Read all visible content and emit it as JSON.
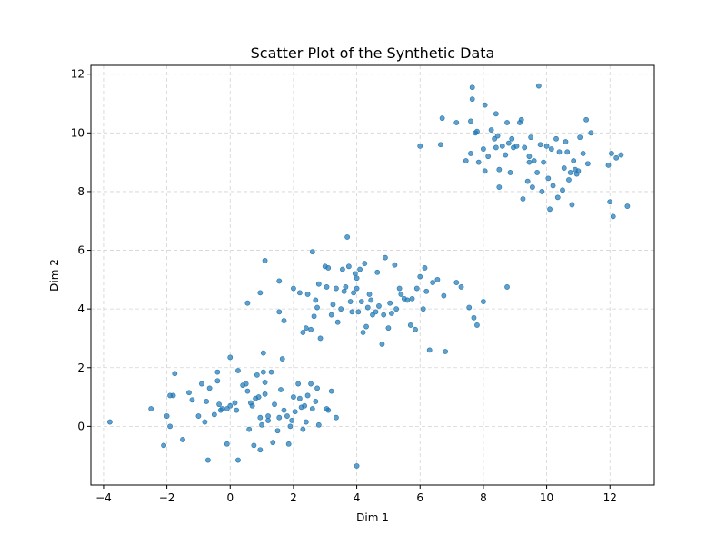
{
  "chart_data": {
    "type": "scatter",
    "title": "Scatter Plot of the Synthetic Data",
    "xlabel": "Dim 1",
    "ylabel": "Dim 2",
    "xlim": [
      -4.4,
      13.4
    ],
    "ylim": [
      -2.0,
      12.3
    ],
    "xticks": [
      -4,
      -2,
      0,
      2,
      4,
      6,
      8,
      10,
      12
    ],
    "yticks": [
      0,
      2,
      4,
      6,
      8,
      10,
      12
    ],
    "grid": true,
    "marker_color": "#1f77b4",
    "marker_alpha": 0.7,
    "series": [
      {
        "points": [
          [
            -3.8,
            0.15
          ],
          [
            -2.5,
            0.6
          ],
          [
            -2.1,
            -0.65
          ],
          [
            -2.0,
            0.35
          ],
          [
            -1.9,
            0.0
          ],
          [
            -1.9,
            1.05
          ],
          [
            -1.8,
            1.05
          ],
          [
            -1.75,
            1.8
          ],
          [
            -1.5,
            -0.45
          ],
          [
            -1.3,
            1.15
          ],
          [
            -1.2,
            0.9
          ],
          [
            -1.0,
            0.35
          ],
          [
            -0.9,
            1.45
          ],
          [
            -0.8,
            0.15
          ],
          [
            -0.75,
            0.85
          ],
          [
            -0.7,
            -1.15
          ],
          [
            -0.65,
            1.3
          ],
          [
            -0.5,
            0.4
          ],
          [
            -0.4,
            1.85
          ],
          [
            -0.4,
            1.55
          ],
          [
            -0.35,
            0.75
          ],
          [
            -0.3,
            0.55
          ],
          [
            -0.25,
            0.6
          ],
          [
            -0.1,
            0.6
          ],
          [
            -0.1,
            -0.6
          ],
          [
            0.0,
            0.7
          ],
          [
            0.0,
            2.35
          ],
          [
            0.15,
            0.8
          ],
          [
            0.2,
            0.55
          ],
          [
            0.25,
            1.9
          ],
          [
            0.25,
            -1.15
          ],
          [
            0.4,
            1.4
          ],
          [
            0.5,
            1.45
          ],
          [
            0.55,
            1.2
          ],
          [
            0.6,
            -0.1
          ],
          [
            0.65,
            0.8
          ],
          [
            0.7,
            0.7
          ],
          [
            0.75,
            -0.65
          ],
          [
            0.8,
            0.95
          ],
          [
            0.85,
            1.75
          ],
          [
            0.9,
            1.0
          ],
          [
            0.95,
            0.3
          ],
          [
            0.95,
            -0.8
          ],
          [
            1.0,
            0.05
          ],
          [
            1.05,
            2.5
          ],
          [
            1.05,
            1.85
          ],
          [
            1.1,
            1.1
          ],
          [
            1.1,
            1.5
          ],
          [
            1.2,
            0.35
          ],
          [
            1.2,
            0.2
          ],
          [
            1.3,
            1.85
          ],
          [
            1.35,
            -0.55
          ],
          [
            1.4,
            0.75
          ],
          [
            1.5,
            -0.15
          ],
          [
            1.55,
            0.3
          ],
          [
            1.6,
            1.25
          ],
          [
            1.65,
            2.3
          ],
          [
            1.7,
            0.55
          ],
          [
            1.8,
            0.35
          ],
          [
            1.85,
            -0.6
          ],
          [
            1.9,
            0.0
          ],
          [
            1.95,
            0.2
          ],
          [
            2.0,
            1.0
          ],
          [
            2.05,
            0.5
          ],
          [
            2.15,
            1.45
          ],
          [
            2.2,
            0.95
          ],
          [
            2.25,
            0.65
          ],
          [
            2.3,
            -0.1
          ],
          [
            2.35,
            0.7
          ],
          [
            2.4,
            0.15
          ],
          [
            2.45,
            1.05
          ],
          [
            2.55,
            1.45
          ],
          [
            2.6,
            0.6
          ],
          [
            2.7,
            0.85
          ],
          [
            2.75,
            1.3
          ],
          [
            2.8,
            0.05
          ],
          [
            3.05,
            0.6
          ],
          [
            3.1,
            0.55
          ],
          [
            3.2,
            1.2
          ],
          [
            3.35,
            0.3
          ],
          [
            0.55,
            4.2
          ],
          [
            0.95,
            4.55
          ],
          [
            1.1,
            5.65
          ],
          [
            1.55,
            4.95
          ],
          [
            1.55,
            3.9
          ],
          [
            1.7,
            3.6
          ],
          [
            2.0,
            4.7
          ],
          [
            2.2,
            4.55
          ],
          [
            2.3,
            3.2
          ],
          [
            2.4,
            3.35
          ],
          [
            2.45,
            4.5
          ],
          [
            2.55,
            3.3
          ],
          [
            2.6,
            5.95
          ],
          [
            2.65,
            3.75
          ],
          [
            2.7,
            4.3
          ],
          [
            2.75,
            4.05
          ],
          [
            2.8,
            4.85
          ],
          [
            2.85,
            3.0
          ],
          [
            3.0,
            5.45
          ],
          [
            3.05,
            4.75
          ],
          [
            3.1,
            5.4
          ],
          [
            3.2,
            3.8
          ],
          [
            3.25,
            4.15
          ],
          [
            3.35,
            4.7
          ],
          [
            3.4,
            3.55
          ],
          [
            3.5,
            4.0
          ],
          [
            3.55,
            5.35
          ],
          [
            3.6,
            4.6
          ],
          [
            3.65,
            4.75
          ],
          [
            3.7,
            6.45
          ],
          [
            3.75,
            5.45
          ],
          [
            3.8,
            4.25
          ],
          [
            3.85,
            3.9
          ],
          [
            3.9,
            4.55
          ],
          [
            3.95,
            5.2
          ],
          [
            4.0,
            5.05
          ],
          [
            4.0,
            4.7
          ],
          [
            4.05,
            3.9
          ],
          [
            4.1,
            5.35
          ],
          [
            4.15,
            4.25
          ],
          [
            4.2,
            3.2
          ],
          [
            4.25,
            5.55
          ],
          [
            4.3,
            3.4
          ],
          [
            4.35,
            4.05
          ],
          [
            4.4,
            4.5
          ],
          [
            4.45,
            4.3
          ],
          [
            4.5,
            3.8
          ],
          [
            4.6,
            3.9
          ],
          [
            4.65,
            5.25
          ],
          [
            4.7,
            4.1
          ],
          [
            4.8,
            2.8
          ],
          [
            4.85,
            3.8
          ],
          [
            4.9,
            5.75
          ],
          [
            5.0,
            3.35
          ],
          [
            5.05,
            4.2
          ],
          [
            5.1,
            3.85
          ],
          [
            5.2,
            5.5
          ],
          [
            5.25,
            4.0
          ],
          [
            5.35,
            4.7
          ],
          [
            5.4,
            4.5
          ],
          [
            5.5,
            4.35
          ],
          [
            5.6,
            4.3
          ],
          [
            5.7,
            3.45
          ],
          [
            5.75,
            4.35
          ],
          [
            5.85,
            3.3
          ],
          [
            5.9,
            4.7
          ],
          [
            6.0,
            5.1
          ],
          [
            6.1,
            4.0
          ],
          [
            6.15,
            5.4
          ],
          [
            6.2,
            4.6
          ],
          [
            6.3,
            2.6
          ],
          [
            6.4,
            4.9
          ],
          [
            6.55,
            5.0
          ],
          [
            6.75,
            4.45
          ],
          [
            6.8,
            2.55
          ],
          [
            7.15,
            4.9
          ],
          [
            7.3,
            4.75
          ],
          [
            7.55,
            4.05
          ],
          [
            7.7,
            3.7
          ],
          [
            7.8,
            3.45
          ],
          [
            8.0,
            4.25
          ],
          [
            8.75,
            4.75
          ],
          [
            4.0,
            -1.35
          ],
          [
            6.0,
            9.55
          ],
          [
            6.65,
            9.6
          ],
          [
            6.7,
            10.5
          ],
          [
            7.15,
            10.35
          ],
          [
            7.45,
            9.05
          ],
          [
            7.6,
            9.3
          ],
          [
            7.6,
            10.4
          ],
          [
            7.65,
            11.15
          ],
          [
            7.65,
            11.55
          ],
          [
            7.8,
            10.05
          ],
          [
            7.85,
            9.0
          ],
          [
            8.0,
            9.45
          ],
          [
            8.05,
            8.7
          ],
          [
            8.15,
            9.2
          ],
          [
            8.25,
            10.1
          ],
          [
            8.35,
            9.8
          ],
          [
            8.4,
            9.5
          ],
          [
            8.45,
            9.9
          ],
          [
            8.5,
            8.75
          ],
          [
            8.6,
            9.55
          ],
          [
            8.7,
            9.25
          ],
          [
            8.75,
            10.35
          ],
          [
            8.8,
            9.65
          ],
          [
            8.85,
            8.65
          ],
          [
            8.9,
            9.8
          ],
          [
            8.95,
            9.5
          ],
          [
            9.05,
            9.55
          ],
          [
            9.15,
            10.35
          ],
          [
            9.2,
            10.45
          ],
          [
            9.3,
            9.5
          ],
          [
            9.4,
            8.35
          ],
          [
            9.45,
            9.0
          ],
          [
            9.5,
            9.85
          ],
          [
            9.55,
            8.15
          ],
          [
            9.6,
            9.05
          ],
          [
            9.7,
            8.65
          ],
          [
            9.75,
            11.6
          ],
          [
            9.8,
            9.6
          ],
          [
            9.85,
            8.0
          ],
          [
            9.9,
            9.0
          ],
          [
            10.0,
            9.55
          ],
          [
            10.05,
            8.45
          ],
          [
            10.1,
            7.4
          ],
          [
            10.15,
            9.45
          ],
          [
            10.2,
            8.2
          ],
          [
            10.3,
            9.8
          ],
          [
            10.35,
            7.8
          ],
          [
            10.4,
            9.35
          ],
          [
            10.5,
            8.05
          ],
          [
            10.55,
            8.8
          ],
          [
            10.6,
            9.7
          ],
          [
            10.65,
            9.35
          ],
          [
            10.75,
            8.65
          ],
          [
            10.8,
            7.55
          ],
          [
            10.85,
            9.05
          ],
          [
            10.9,
            8.75
          ],
          [
            11.0,
            8.7
          ],
          [
            11.05,
            9.85
          ],
          [
            11.15,
            9.3
          ],
          [
            11.25,
            10.45
          ],
          [
            11.3,
            8.95
          ],
          [
            11.4,
            10.0
          ],
          [
            11.95,
            8.9
          ],
          [
            12.0,
            7.65
          ],
          [
            12.05,
            9.3
          ],
          [
            12.1,
            7.15
          ],
          [
            12.2,
            9.15
          ],
          [
            12.35,
            9.25
          ],
          [
            12.55,
            7.5
          ],
          [
            8.4,
            10.65
          ],
          [
            8.05,
            10.95
          ],
          [
            8.5,
            8.15
          ],
          [
            7.75,
            10.0
          ],
          [
            9.45,
            9.2
          ],
          [
            10.95,
            8.6
          ],
          [
            9.25,
            7.75
          ],
          [
            10.7,
            8.4
          ]
        ]
      }
    ]
  }
}
